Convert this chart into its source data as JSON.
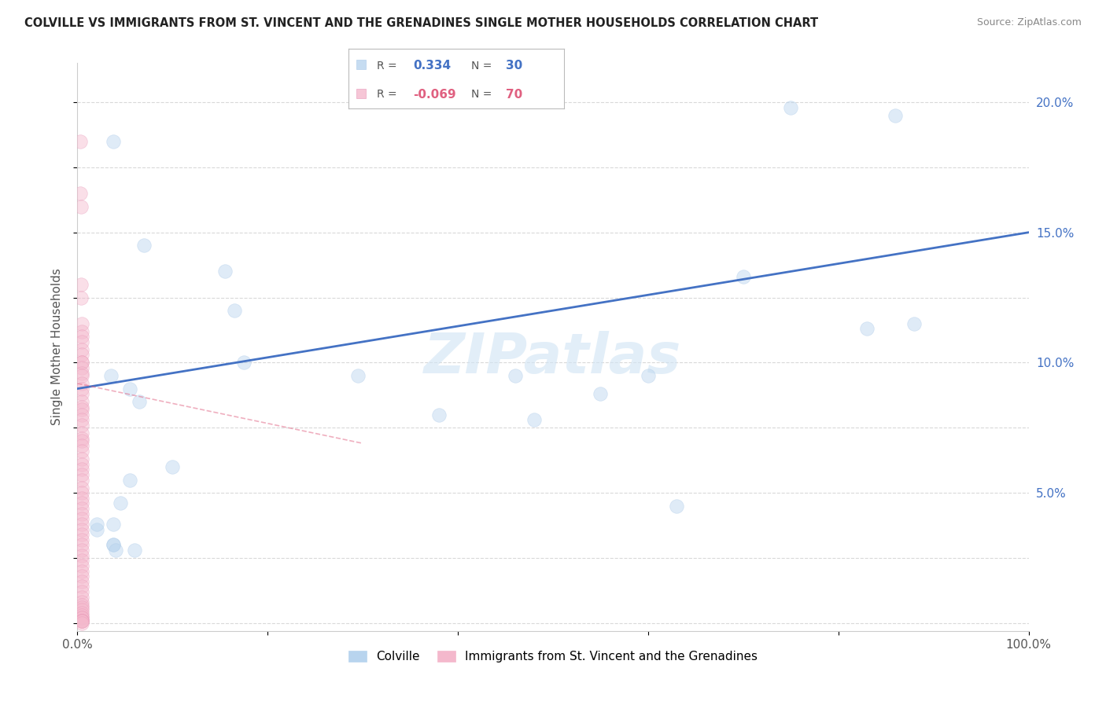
{
  "title": "COLVILLE VS IMMIGRANTS FROM ST. VINCENT AND THE GRENADINES SINGLE MOTHER HOUSEHOLDS CORRELATION CHART",
  "source": "Source: ZipAtlas.com",
  "ylabel": "Single Mother Households",
  "colville_label": "Colville",
  "immigrants_label": "Immigrants from St. Vincent and the Grenadines",
  "blue_color": "#b8d4ee",
  "blue_line_color": "#4472c4",
  "pink_color": "#f4b8cc",
  "pink_line_color": "#e06080",
  "watermark": "ZIPatlas",
  "xlim": [
    0,
    1.0
  ],
  "ylim": [
    -0.003,
    0.215
  ],
  "blue_scatter_x": [
    0.038,
    0.07,
    0.035,
    0.055,
    0.065,
    0.1,
    0.155,
    0.165,
    0.175,
    0.295,
    0.02,
    0.038,
    0.038,
    0.055,
    0.38,
    0.46,
    0.48,
    0.55,
    0.6,
    0.63,
    0.7,
    0.75,
    0.83,
    0.86,
    0.88,
    0.02,
    0.038,
    0.04,
    0.06,
    0.045
  ],
  "blue_scatter_y": [
    0.185,
    0.145,
    0.095,
    0.09,
    0.085,
    0.06,
    0.135,
    0.12,
    0.1,
    0.095,
    0.036,
    0.03,
    0.03,
    0.055,
    0.08,
    0.095,
    0.078,
    0.088,
    0.095,
    0.045,
    0.133,
    0.198,
    0.113,
    0.195,
    0.115,
    0.038,
    0.038,
    0.028,
    0.028,
    0.046
  ],
  "pink_scatter_x": [
    0.003,
    0.003,
    0.004,
    0.004,
    0.004,
    0.005,
    0.005,
    0.005,
    0.005,
    0.005,
    0.005,
    0.005,
    0.005,
    0.005,
    0.005,
    0.005,
    0.005,
    0.005,
    0.005,
    0.005,
    0.005,
    0.005,
    0.005,
    0.005,
    0.005,
    0.005,
    0.005,
    0.005,
    0.005,
    0.005,
    0.005,
    0.005,
    0.005,
    0.005,
    0.005,
    0.005,
    0.005,
    0.005,
    0.005,
    0.005,
    0.005,
    0.005,
    0.005,
    0.005,
    0.005,
    0.005,
    0.005,
    0.005,
    0.005,
    0.005,
    0.005,
    0.005,
    0.005,
    0.005,
    0.005,
    0.005,
    0.005,
    0.005,
    0.005,
    0.005,
    0.005,
    0.005,
    0.005,
    0.005,
    0.005,
    0.005,
    0.005,
    0.005,
    0.005,
    0.005
  ],
  "pink_scatter_y": [
    0.185,
    0.165,
    0.16,
    0.13,
    0.125,
    0.115,
    0.112,
    0.11,
    0.108,
    0.105,
    0.103,
    0.1,
    0.1,
    0.098,
    0.096,
    0.095,
    0.092,
    0.09,
    0.088,
    0.085,
    0.083,
    0.082,
    0.08,
    0.078,
    0.076,
    0.073,
    0.071,
    0.07,
    0.068,
    0.066,
    0.063,
    0.061,
    0.059,
    0.057,
    0.055,
    0.052,
    0.05,
    0.048,
    0.046,
    0.044,
    0.042,
    0.04,
    0.038,
    0.036,
    0.034,
    0.032,
    0.03,
    0.028,
    0.026,
    0.024,
    0.022,
    0.02,
    0.018,
    0.016,
    0.014,
    0.012,
    0.01,
    0.008,
    0.007,
    0.006,
    0.005,
    0.004,
    0.003,
    0.002,
    0.002,
    0.001,
    0.001,
    0.001,
    0.001,
    0.0
  ],
  "blue_line_x": [
    0.0,
    1.0
  ],
  "blue_line_y": [
    0.09,
    0.15
  ],
  "pink_line_x": [
    0.0,
    0.3
  ],
  "pink_line_y": [
    0.092,
    0.069
  ],
  "marker_size": 160,
  "marker_alpha": 0.45,
  "line_width": 2.0,
  "r_blue": "0.334",
  "n_blue": "30",
  "r_pink": "-0.069",
  "n_pink": "70"
}
